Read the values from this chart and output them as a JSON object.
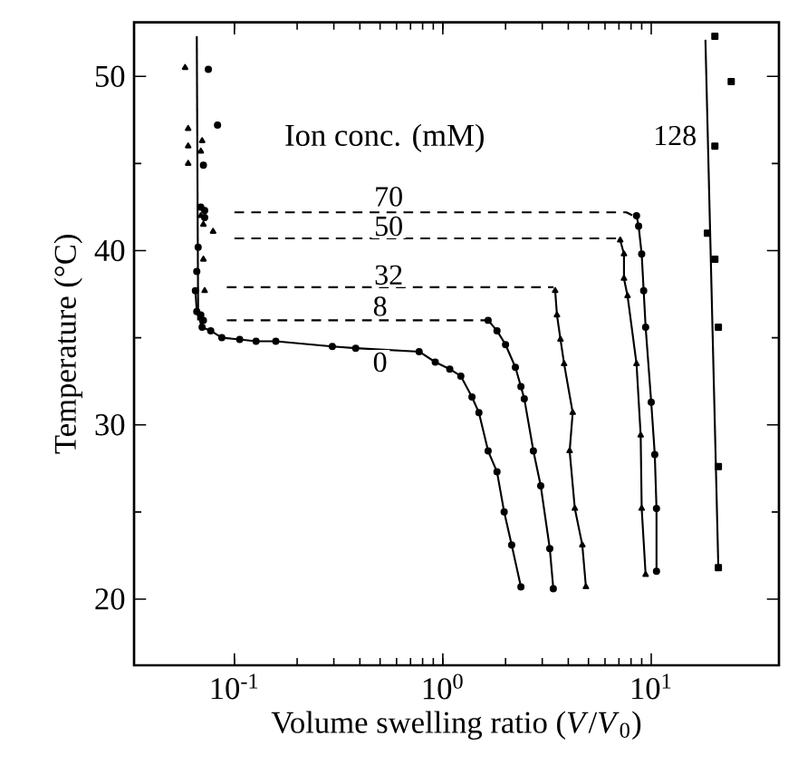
{
  "chart_data": {
    "type": "line",
    "xlabel": "Volume swelling ratio (*V*/*V*$_{0}$)",
    "ylabel": "Temperature (°C)",
    "log": "x",
    "xlim": [
      0.033,
      41
    ],
    "ylim": [
      16.2,
      53.1
    ],
    "xticks": [
      {
        "value": 0.1,
        "label": "10$^{-1}$"
      },
      {
        "value": 1,
        "label": "10$^{0}$"
      },
      {
        "value": 10,
        "label": "10$^{1}$"
      }
    ],
    "yticks": [
      20,
      30,
      40,
      50
    ],
    "grid": false,
    "annotations": [
      "Ion conc. (mM)",
      {
        "text": "0",
        "x": 0.5,
        "y": 33.6
      },
      {
        "text": "8",
        "x": 0.5,
        "y": 36.8
      },
      {
        "text": "32",
        "x": 0.55,
        "y": 38.6
      },
      {
        "text": "50",
        "x": 0.55,
        "y": 41.4
      },
      {
        "text": "70",
        "x": 0.55,
        "y": 43.1
      },
      {
        "text": "128",
        "x": 13,
        "y": 46.6
      }
    ],
    "series": [
      {
        "marker": "circle",
        "color": "#000000",
        "x": [
          0.065,
          0.066,
          0.07,
          0.077,
          0.087,
          0.106,
          0.127,
          0.158,
          0.295,
          0.382,
          0.77,
          0.92,
          1.08,
          1.22,
          1.38,
          1.49,
          1.65,
          1.82,
          1.97,
          2.14,
          2.37
        ],
        "values": [
          37.7,
          36.5,
          35.6,
          35.4,
          35.0,
          34.9,
          34.8,
          34.8,
          34.5,
          34.4,
          34.2,
          33.6,
          33.2,
          32.8,
          31.6,
          30.7,
          28.5,
          27.3,
          25.0,
          23.1,
          20.7
        ]
      },
      {
        "marker": "none",
        "color": "#000000",
        "x": [
          0.066,
          0.067
        ],
        "values": [
          52.3,
          36.0
        ]
      },
      {
        "type": "scatter",
        "marker": "circle",
        "color": "#000000",
        "x": [
          0.071,
          0.069,
          0.067,
          0.066,
          0.069,
          0.071
        ],
        "values": [
          44.9,
          42.5,
          40.2,
          38.8,
          36.3,
          36.0
        ]
      },
      {
        "marker": "none",
        "line_style": "dashed",
        "color": "#000000",
        "x": [
          0.092,
          1.65
        ],
        "values": [
          36.0,
          36.0
        ]
      },
      {
        "marker": "circle",
        "color": "#000000",
        "x": [
          1.65,
          1.82,
          2.0,
          2.23,
          2.37,
          2.46,
          2.72,
          2.95,
          3.26,
          3.39
        ],
        "values": [
          36.0,
          35.4,
          34.6,
          33.3,
          32.2,
          31.5,
          28.5,
          26.5,
          22.9,
          20.6
        ]
      },
      {
        "type": "scatter",
        "marker": "triangle",
        "color": "#000000",
        "x": [
          0.06,
          0.06,
          0.06,
          0.069,
          0.071,
          0.072
        ],
        "values": [
          47.0,
          46.0,
          45.0,
          42.0,
          39.5,
          37.7
        ]
      },
      {
        "marker": "none",
        "line_style": "dashed",
        "color": "#000000",
        "x": [
          0.092,
          3.4
        ],
        "values": [
          37.9,
          37.9
        ]
      },
      {
        "marker": "triangle",
        "color": "#000000",
        "x": [
          3.46,
          3.53,
          3.67,
          3.82,
          4.2,
          4.06,
          4.3,
          4.67,
          4.86
        ],
        "values": [
          37.7,
          36.3,
          34.9,
          33.5,
          30.7,
          28.5,
          25.2,
          23.1,
          20.7
        ]
      },
      {
        "type": "scatter",
        "marker": "triangle",
        "color": "#000000",
        "x": [
          0.058,
          0.07,
          0.069,
          0.071,
          0.079
        ],
        "values": [
          50.5,
          46.3,
          45.7,
          41.5,
          41.1
        ]
      },
      {
        "marker": "none",
        "line_style": "dashed",
        "color": "#000000",
        "x": [
          0.1,
          7.0
        ],
        "values": [
          40.7,
          40.7
        ]
      },
      {
        "marker": "triangle",
        "color": "#000000",
        "x": [
          7.1,
          7.4,
          7.4,
          7.7,
          8.5,
          8.9,
          9.0,
          9.4
        ],
        "values": [
          40.6,
          39.8,
          38.4,
          37.4,
          33.5,
          29.4,
          25.2,
          21.4
        ]
      },
      {
        "type": "scatter",
        "marker": "circle",
        "color": "#000000",
        "x": [
          0.075,
          0.083,
          0.072,
          0.072
        ],
        "values": [
          50.4,
          47.2,
          42.3,
          41.9
        ]
      },
      {
        "marker": "none",
        "line_style": "dashed",
        "color": "#000000",
        "x": [
          0.1,
          7.6,
          8.2
        ],
        "values": [
          42.2,
          42.2,
          42.0
        ]
      },
      {
        "marker": "circle",
        "color": "#000000",
        "x": [
          8.5,
          8.7,
          9.0,
          9.2,
          9.4,
          10.0,
          10.4,
          10.6,
          10.6
        ],
        "values": [
          42.0,
          41.4,
          39.8,
          37.7,
          35.6,
          31.3,
          28.3,
          25.2,
          21.6
        ]
      },
      {
        "type": "scatter",
        "marker": "square",
        "color": "#000000",
        "x": [
          20.2,
          24.2,
          20.2,
          18.6,
          20.2,
          21.0,
          21.0,
          21.0
        ],
        "values": [
          52.3,
          49.7,
          46.0,
          41.0,
          39.5,
          35.6,
          27.6,
          21.8
        ]
      },
      {
        "marker": "none",
        "color": "#000000",
        "x": [
          18.2,
          21.0
        ],
        "values": [
          52.1,
          21.7
        ]
      }
    ]
  }
}
